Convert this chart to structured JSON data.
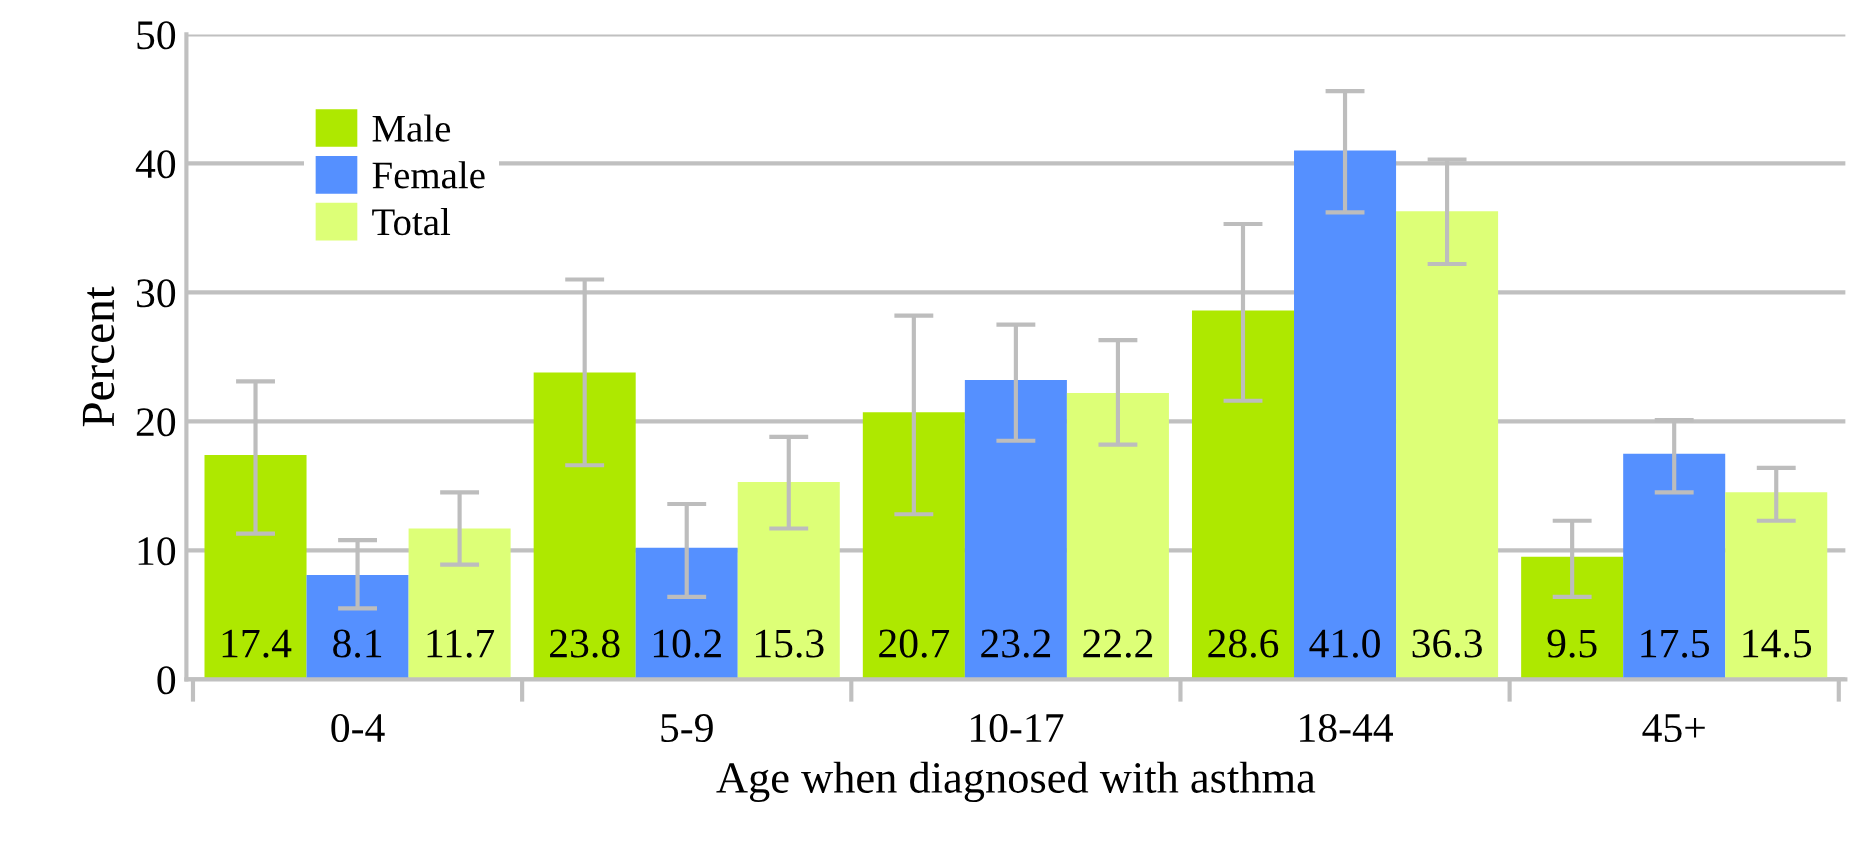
{
  "chart_data": {
    "type": "bar",
    "xlabel": "Age when diagnosed with asthma",
    "ylabel": "Percent",
    "categories": [
      "0-4",
      "5-9",
      "10-17",
      "18-44",
      "45+"
    ],
    "series": [
      {
        "name": "Male",
        "color": "#aee800",
        "values": [
          17.4,
          23.8,
          20.7,
          28.6,
          9.5
        ],
        "value_labels": [
          "17.4",
          "23.8",
          "20.7",
          "28.6",
          "9.5"
        ],
        "errors": [
          [
            11.3,
            23.1
          ],
          [
            16.6,
            31.0
          ],
          [
            12.8,
            28.2
          ],
          [
            21.6,
            35.3
          ],
          [
            6.4,
            12.3
          ]
        ]
      },
      {
        "name": "Female",
        "color": "#5590ff",
        "values": [
          8.1,
          10.2,
          23.2,
          41.0,
          17.5
        ],
        "value_labels": [
          "8.1",
          "10.2",
          "23.2",
          "41.0",
          "17.5"
        ],
        "errors": [
          [
            5.5,
            10.8
          ],
          [
            6.4,
            13.6
          ],
          [
            18.5,
            27.5
          ],
          [
            36.2,
            45.6
          ],
          [
            14.5,
            20.1
          ]
        ]
      },
      {
        "name": "Total",
        "color": "#ddff77",
        "values": [
          11.7,
          15.3,
          22.2,
          36.3,
          14.5
        ],
        "value_labels": [
          "11.7",
          "15.3",
          "22.2",
          "36.3",
          "14.5"
        ],
        "errors": [
          [
            8.9,
            14.5
          ],
          [
            11.7,
            18.8
          ],
          [
            18.2,
            26.3
          ],
          [
            32.2,
            40.3
          ],
          [
            12.3,
            16.4
          ]
        ]
      }
    ],
    "ylim": [
      0,
      50
    ],
    "yticks": [
      0,
      10,
      20,
      30,
      40,
      50
    ],
    "grid": "y",
    "legend": "top left"
  }
}
